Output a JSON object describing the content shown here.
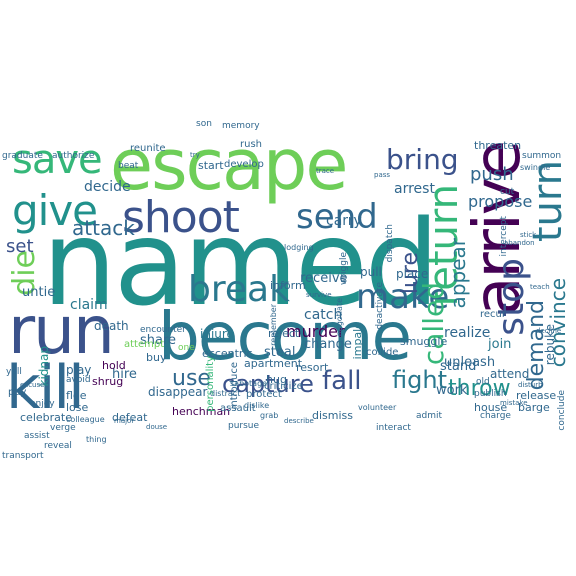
{
  "palette": {
    "purple": "#440154",
    "indigo": "#3b528b",
    "blue": "#31688e",
    "teal": "#21918c",
    "sea": "#2a788e",
    "green": "#35b779",
    "lime": "#6ece58",
    "yellow": "#b5de2b",
    "gold": "#fde725"
  },
  "words": {
    "named": "named",
    "escape": "escape",
    "arrive": "arrive",
    "become": "become",
    "run": "run",
    "kill": "kill",
    "shoot": "shoot",
    "give": "give",
    "save": "save",
    "return": "return",
    "turn": "turn",
    "send": "send",
    "break": "break",
    "make": "make",
    "bring": "bring",
    "stop": "stop",
    "called": "called",
    "die": "die",
    "fall": "fall",
    "capture": "capture",
    "fight": "fight",
    "attack": "attack",
    "use": "use",
    "lure": "lure",
    "demand": "demand",
    "convince": "convince",
    "appear": "appear",
    "throw": "throw",
    "set": "set",
    "murder": "murder",
    "push": "push",
    "propose": "propose",
    "decide": "decide",
    "catch": "catch",
    "arrest": "arrest",
    "claim": "claim",
    "carry": "carry",
    "realize": "realize",
    "receive": "receive",
    "untie": "untie",
    "kidnap": "kidnap",
    "join": "join",
    "hire": "hire",
    "stand": "stand",
    "unleash": "unleash",
    "change": "change",
    "steal": "steal",
    "place": "place",
    "work": "work",
    "share": "share",
    "death": "death",
    "rebuke": "rebuke",
    "injure": "injure",
    "pull": "pull",
    "attend": "attend",
    "disappear": "disappear",
    "eccentric": "eccentric",
    "house": "house",
    "play": "play",
    "hold": "hold",
    "threaten": "threaten",
    "buy": "buy",
    "impale": "impale",
    "reject": "reject",
    "defeat": "defeat",
    "celebrate": "celebrate",
    "henchman": "henchman",
    "dismiss": "dismiss",
    "lose": "lose",
    "apartment": "apartment",
    "inform": "inform",
    "smuggle": "smuggle",
    "shrug": "shrug",
    "start": "start",
    "flee": "flee",
    "resort": "resort",
    "barge": "barge",
    "hug": "hug",
    "release": "release",
    "conclude": "conclude",
    "attempt": "attempt",
    "intercept": "intercept",
    "develop": "develop",
    "push_small": "reunite",
    "recur": "recur",
    "collide": "collide",
    "assault": "assault",
    "protect": "protect",
    "criticize": "criticize",
    "pay": "pay",
    "introduce": "introduce",
    "personality": "personality",
    "son": "son",
    "rush": "rush",
    "memory": "memory",
    "avoid": "avoid",
    "enjoy": "enjoy",
    "reveal": "reveal",
    "assist": "assist",
    "transport": "transport",
    "graduate": "graduate",
    "authorize": "authorize",
    "beat": "beat",
    "encounter": "encounter",
    "pursue": "pursue",
    "verge": "verge",
    "yell": "yell",
    "interact": "interact",
    "admit": "admit",
    "charge": "charge",
    "old": "old",
    "publish": "publish",
    "cut": "cut",
    "summon": "summon",
    "swindle": "swindle",
    "one": "one",
    "thing": "thing",
    "lodging": "lodging",
    "colleague": "colleague",
    "distract": "distract",
    "dislike": "dislike",
    "volunteer": "volunteer",
    "grab": "grab",
    "negotiate": "negotiate",
    "wriggle": "wriggle",
    "dispatch": "dispatch",
    "deactivate": "deactivate",
    "sabotage": "sabotage",
    "survive": "survive",
    "remember": "remember",
    "describe": "describe",
    "pass": "pass",
    "try": "try",
    "trace": "trace",
    "mistake": "mistake",
    "decline": "decline",
    "disturb": "disturb",
    "abandon": "abandon",
    "teach": "teach",
    "stick": "stick",
    "major": "major",
    "douse": "douse",
    "excuse": "excuse"
  }
}
